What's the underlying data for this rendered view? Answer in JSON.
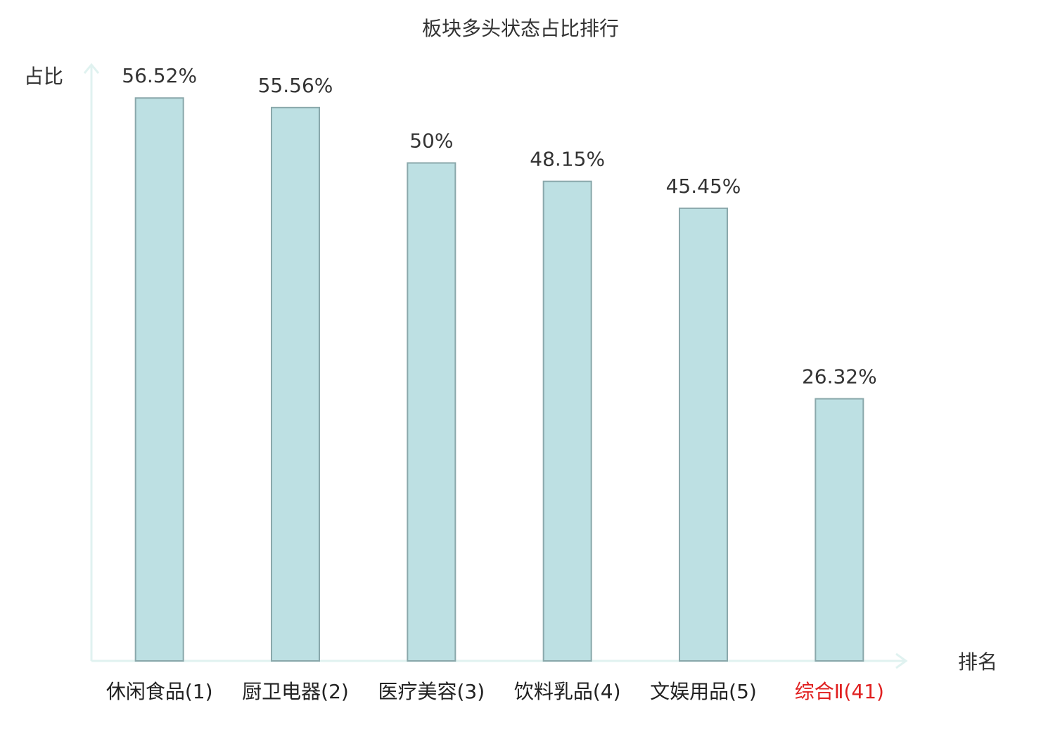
{
  "chart_data": {
    "type": "bar",
    "title": "板块多头状态占比排行",
    "y_label": "占比",
    "x_label": "排名",
    "categories": [
      "休闲食品(1)",
      "厨卫电器(2)",
      "医疗美容(3)",
      "饮料乳品(4)",
      "文娱用品(5)",
      "综合Ⅱ(41)"
    ],
    "label_colors": [
      "#222222",
      "#222222",
      "#222222",
      "#222222",
      "#222222",
      "#e02020"
    ],
    "values": [
      56.52,
      55.56,
      50,
      48.15,
      45.45,
      26.32
    ],
    "value_labels": [
      "56.52%",
      "55.56%",
      "50%",
      "48.15%",
      "45.45%",
      "26.32%"
    ],
    "color": "#bde0e3",
    "edge_color": "#8aa8ab",
    "ylim": [
      0,
      60
    ]
  }
}
